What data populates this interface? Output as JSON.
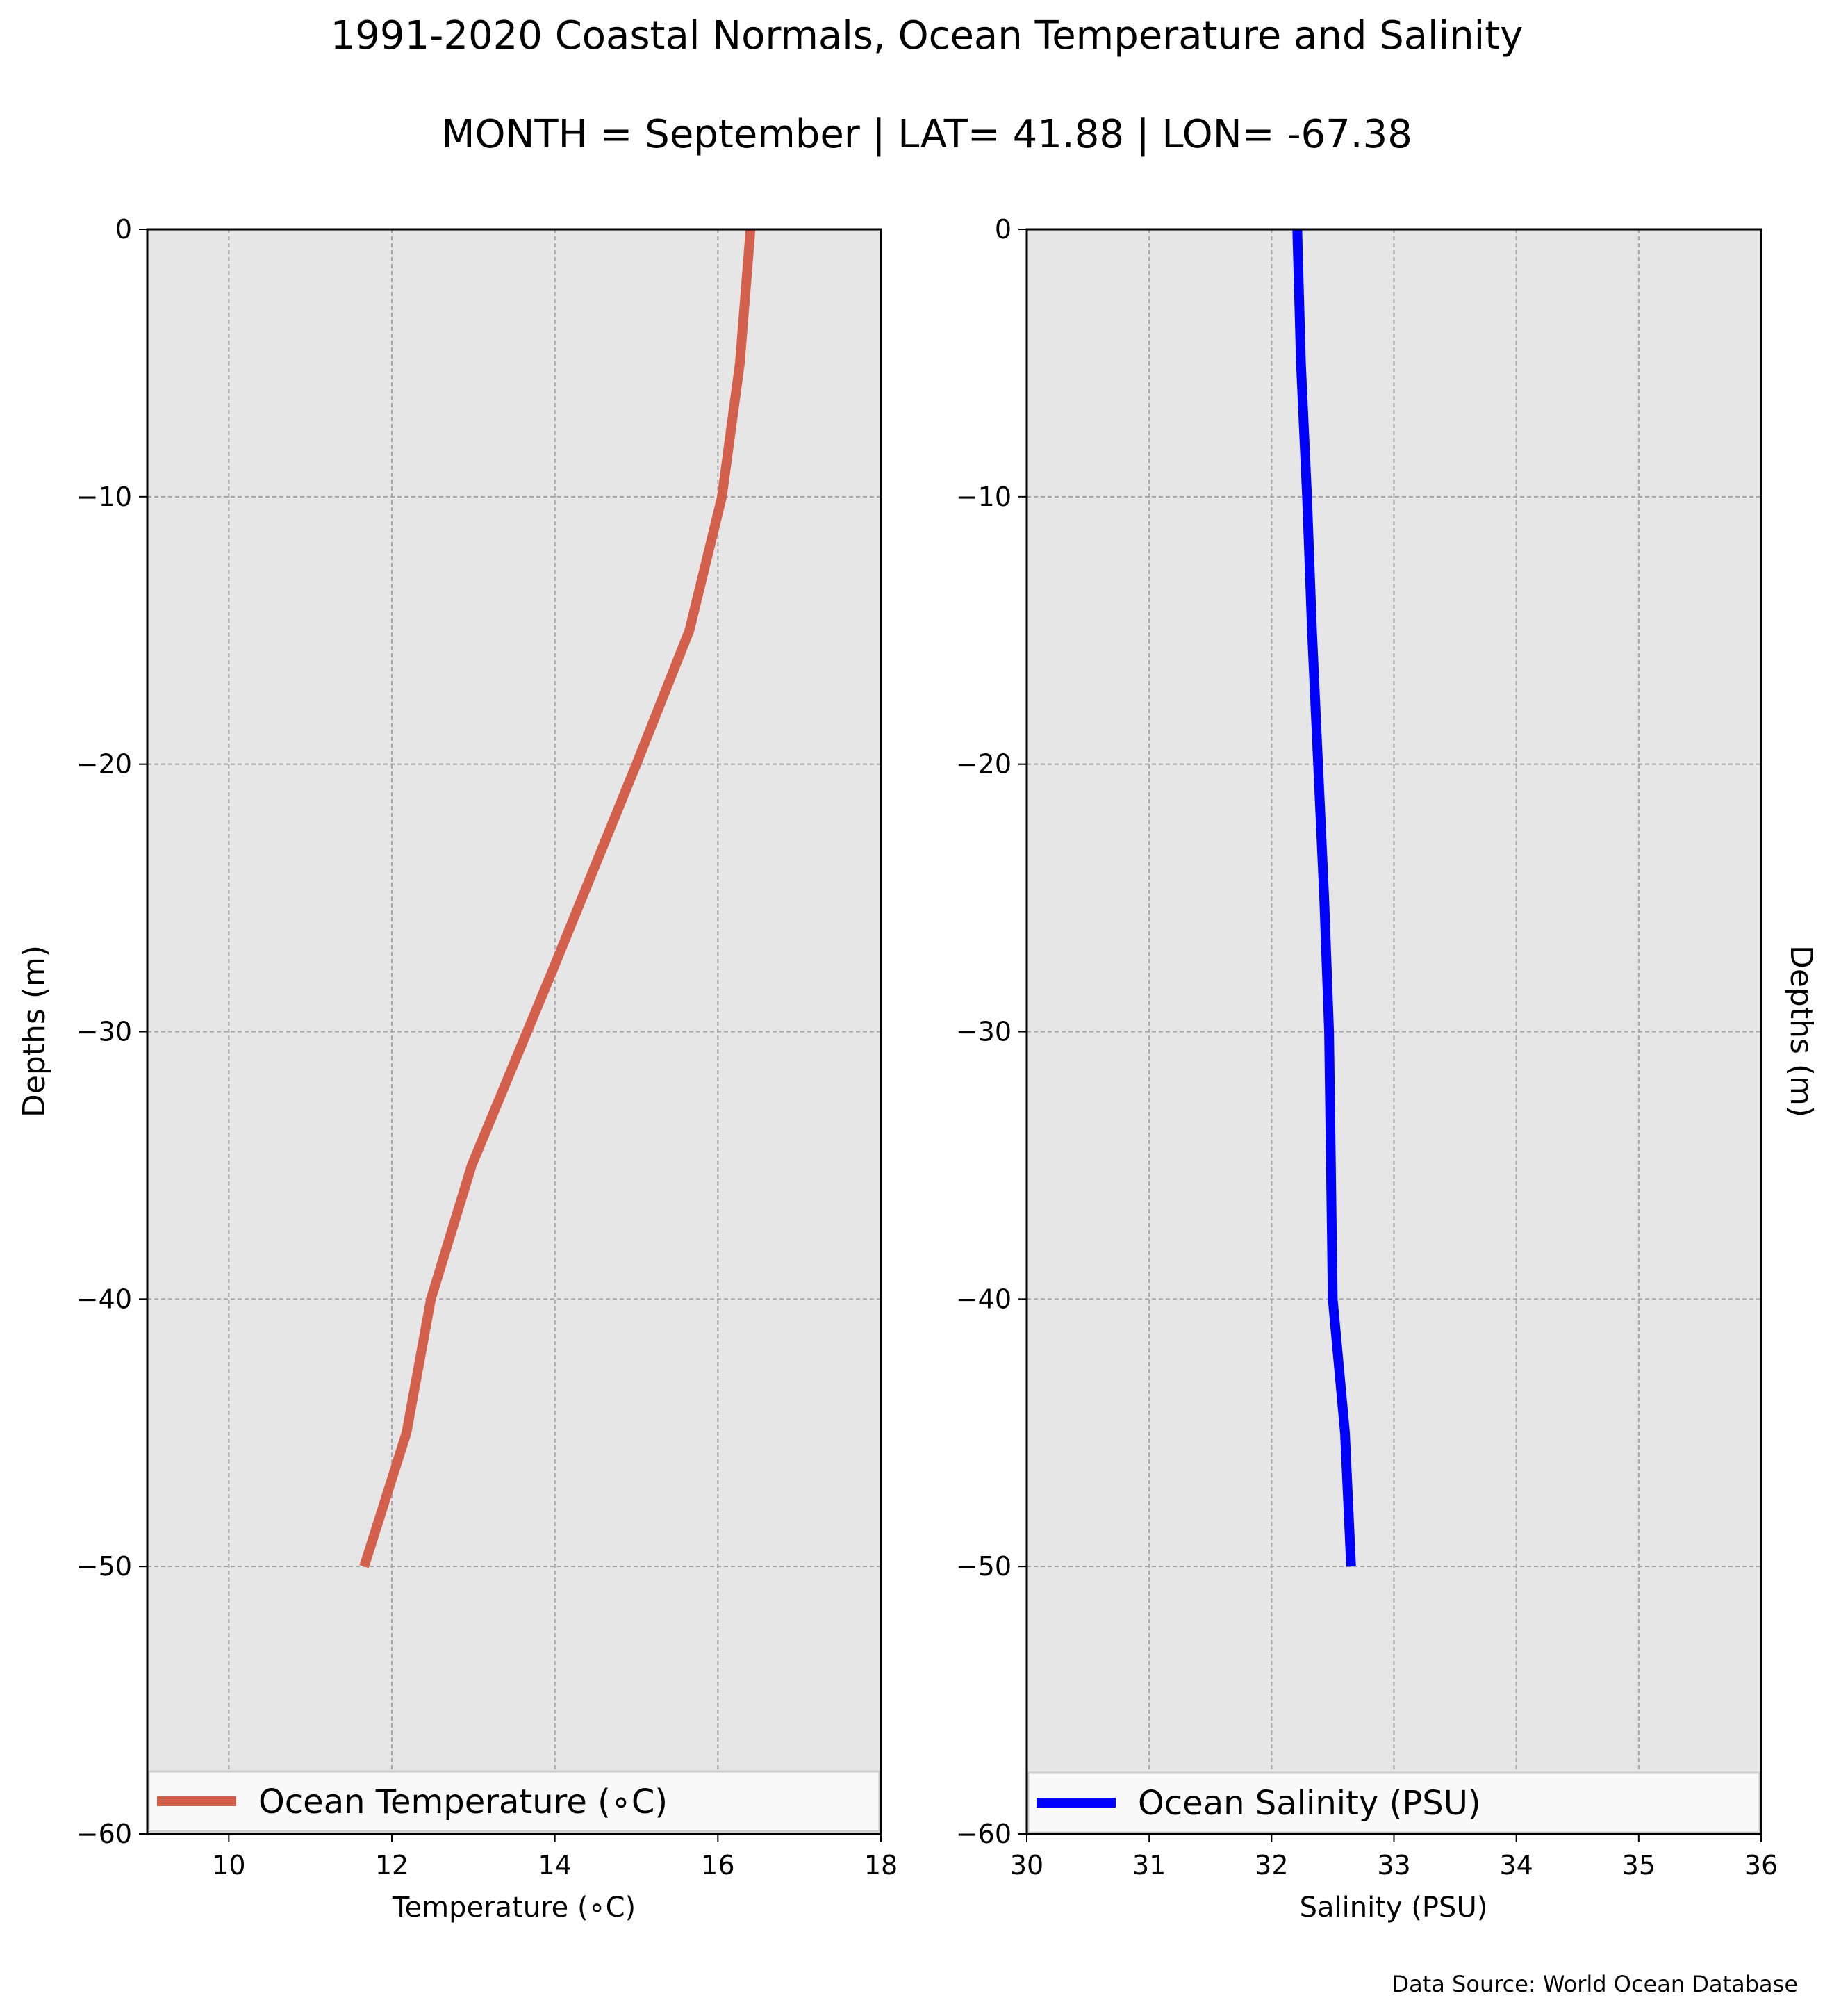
{
  "figure": {
    "title": "1991-2020 Coastal Normals, Ocean Temperature and Salinity",
    "subtitle": "MONTH = September | LAT= 41.88 | LON= -67.38",
    "source": "Data Source: World Ocean Database"
  },
  "chart_data": [
    {
      "type": "line",
      "xlabel": "Temperature ($^\\circ$C)",
      "xlabel_display": "Temperature (∘C)",
      "ylabel": "Depths (m)",
      "xlim": [
        9,
        18
      ],
      "ylim": [
        -60,
        0
      ],
      "xticks": [
        10,
        12,
        14,
        16,
        18
      ],
      "yticks": [
        0,
        -10,
        -20,
        -30,
        -40,
        -50,
        -60
      ],
      "grid": true,
      "legend_position": "lower center",
      "series": [
        {
          "name": "Ocean Temperature (∘C)",
          "color": "#d35f4d",
          "x": [
            16.4,
            16.27,
            16.05,
            15.65,
            15.0,
            14.0,
            12.98,
            12.48,
            12.18,
            11.66
          ],
          "y": [
            0,
            -5,
            -10,
            -15,
            -20,
            -27.5,
            -35,
            -40,
            -45,
            -50
          ]
        }
      ]
    },
    {
      "type": "line",
      "xlabel": "Salinity (PSU)",
      "ylabel": "Depths (m)",
      "xlim": [
        30,
        36
      ],
      "ylim": [
        -60,
        0
      ],
      "xticks": [
        30,
        31,
        32,
        33,
        34,
        35,
        36
      ],
      "yticks": [
        0,
        -10,
        -20,
        -30,
        -40,
        -50,
        -60
      ],
      "grid": true,
      "legend_position": "lower center",
      "series": [
        {
          "name": "Ocean Salinity (PSU)",
          "color": "#0000ff",
          "x": [
            32.21,
            32.24,
            32.29,
            32.33,
            32.38,
            32.43,
            32.47,
            32.5,
            32.6,
            32.65
          ],
          "y": [
            0,
            -5,
            -10,
            -15,
            -20,
            -25,
            -30,
            -40,
            -45,
            -50
          ]
        }
      ]
    }
  ]
}
